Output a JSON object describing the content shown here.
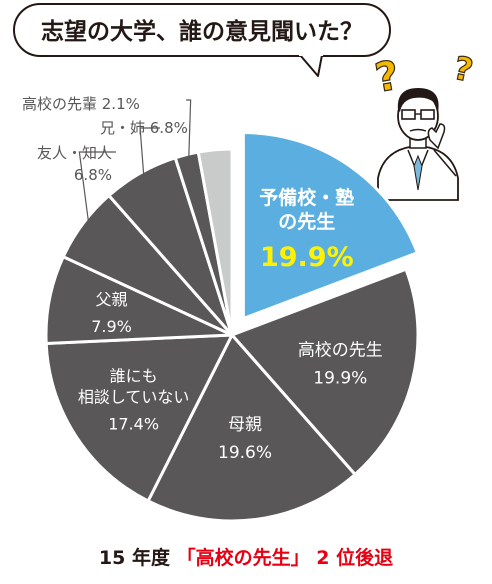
{
  "bubble": {
    "text": "志望の大学、誰の意見聞いた？"
  },
  "icons": {
    "question_mark": "?"
  },
  "footer": {
    "prefix": "15 年度",
    "highlight": "「高校の先生」",
    "suffix": "2 位後退"
  },
  "colors": {
    "slice_dark": "#595757",
    "slice_light": "#c9caca",
    "slice_highlight": "#5aafe0",
    "highlight_value": "#fff200",
    "question_mark": "#f5b800",
    "footer_highlight": "#e60012",
    "label_gray": "#595757"
  },
  "chart_data": {
    "type": "pie",
    "title": "",
    "unit": "%",
    "slices": [
      {
        "label_lines": [
          "予備校・塾",
          "の先生"
        ],
        "value": 19.9,
        "value_text": "19.9%",
        "highlight": true
      },
      {
        "label_lines": [
          "高校の先生"
        ],
        "value": 19.9,
        "value_text": "19.9%"
      },
      {
        "label_lines": [
          "母親"
        ],
        "value": 19.6,
        "value_text": "19.6%"
      },
      {
        "label_lines": [
          "誰にも",
          "相談していない"
        ],
        "value": 17.4,
        "value_text": "17.4%"
      },
      {
        "label_lines": [
          "父親"
        ],
        "value": 7.9,
        "value_text": "7.9%"
      },
      {
        "label_lines": [
          "友人・知人"
        ],
        "value": 6.8,
        "value_text": "6.8%"
      },
      {
        "label_lines": [
          "兄・姉"
        ],
        "value": 6.8,
        "value_text": "6.8%"
      },
      {
        "label_lines": [
          "高校の先輩"
        ],
        "value": 2.1,
        "value_text": "2.1%"
      },
      {
        "label_lines": [],
        "value": 3.0,
        "value_text": "",
        "unlabeled": true
      }
    ]
  }
}
